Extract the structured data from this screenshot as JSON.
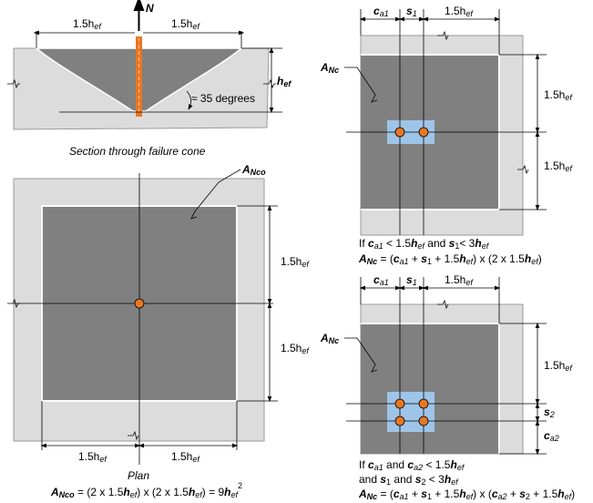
{
  "colors": {
    "concrete_light": "#dcdcdc",
    "concrete_dark": "#808080",
    "anchor": "#e87722",
    "anchor_group_plate": "#9ec5e8",
    "line": "#000000",
    "edge": "#ffffff"
  },
  "icons": [
    "arrow-up-icon",
    "leader-squiggle-icon",
    "break-line-icon"
  ],
  "section": {
    "load_label": "N",
    "top_dim_left": "1.5h",
    "top_dim_right": "1.5h",
    "top_dim_sub": "ef",
    "depth_label": "h",
    "depth_sub": "ef",
    "angle_label": "≈ 35 degrees",
    "caption": "Section through failure cone"
  },
  "plan": {
    "area_label": "A",
    "area_sub": "Nco",
    "dim_right_upper": "1.5h",
    "dim_right_lower": "1.5h",
    "dim_bottom_left": "1.5h",
    "dim_bottom_right": "1.5h",
    "dim_sub": "ef",
    "caption": "Plan",
    "formula": {
      "lhs": "A",
      "lhs_sub": "Nco",
      "eq": " = (2 x 1.5",
      "h1": "h",
      "h1_sub": "ef",
      "mid": ") x (2 x 1.5",
      "h2": "h",
      "h2_sub": "ef",
      "end": ") = 9",
      "h3": "h",
      "h3_sub": "ef",
      "sup": "2"
    }
  },
  "top_right": {
    "area_label": "A",
    "area_sub": "Nc",
    "dim_ca1": "c",
    "dim_ca1_sub": "a1",
    "dim_s1": "s",
    "dim_s1_sub": "1",
    "dim_top_right": "1.5h",
    "dim_right_upper": "1.5h",
    "dim_right_lower": "1.5h",
    "dim_sub": "ef",
    "condition": {
      "if": "If ",
      "c": "c",
      "c_sub": "a1",
      "lt1": " < 1.5",
      "h1": "h",
      "h1_sub": "ef",
      "and": " and ",
      "s": "s",
      "s_sub": "1",
      "lt2": "< 3",
      "h2": "h",
      "h2_sub": "ef"
    },
    "formula": {
      "lhs": "A",
      "lhs_sub": "Nc",
      "eq": " = (",
      "c": "c",
      "c_sub": "a1",
      "p1": " + ",
      "s": "s",
      "s_sub": "1",
      "p2": " + 1.5",
      "h1": "h",
      "h1_sub": "ef",
      "mid": ") x (2 x 1.5",
      "h2": "h",
      "h2_sub": "ef",
      "end": ")"
    }
  },
  "bottom_right": {
    "area_label": "A",
    "area_sub": "Nc",
    "dim_ca1": "c",
    "dim_ca1_sub": "a1",
    "dim_s1": "s",
    "dim_s1_sub": "1",
    "dim_top_right": "1.5h",
    "dim_right": "1.5h",
    "dim_sub": "ef",
    "dim_s2": "s",
    "dim_s2_sub": "2",
    "dim_ca2": "c",
    "dim_ca2_sub": "a2",
    "condition1": {
      "if": "If ",
      "c1": "c",
      "c1_sub": "a1",
      "and": " and ",
      "c2": "c",
      "c2_sub": "a2",
      "lt": " < 1.5",
      "h": "h",
      "h_sub": "ef"
    },
    "condition2": {
      "and": "and ",
      "s1": "s",
      "s1_sub": "1",
      "and2": " and ",
      "s2": "s",
      "s2_sub": "2",
      "lt": " < 3",
      "h": "h",
      "h_sub": "ef"
    },
    "formula": {
      "lhs": "A",
      "lhs_sub": "Nc",
      "eq": " = (",
      "c1": "c",
      "c1_sub": "a1",
      "p1": " + ",
      "s1": "s",
      "s1_sub": "1",
      "p2": " + 1.5",
      "h1": "h",
      "h1_sub": "ef",
      "mid": ") x (",
      "c2": "c",
      "c2_sub": "a2",
      "p3": " + ",
      "s2": "s",
      "s2_sub": "2",
      "p4": " + 1.5",
      "h2": "h",
      "h2_sub": "ef",
      "end": ")"
    }
  }
}
